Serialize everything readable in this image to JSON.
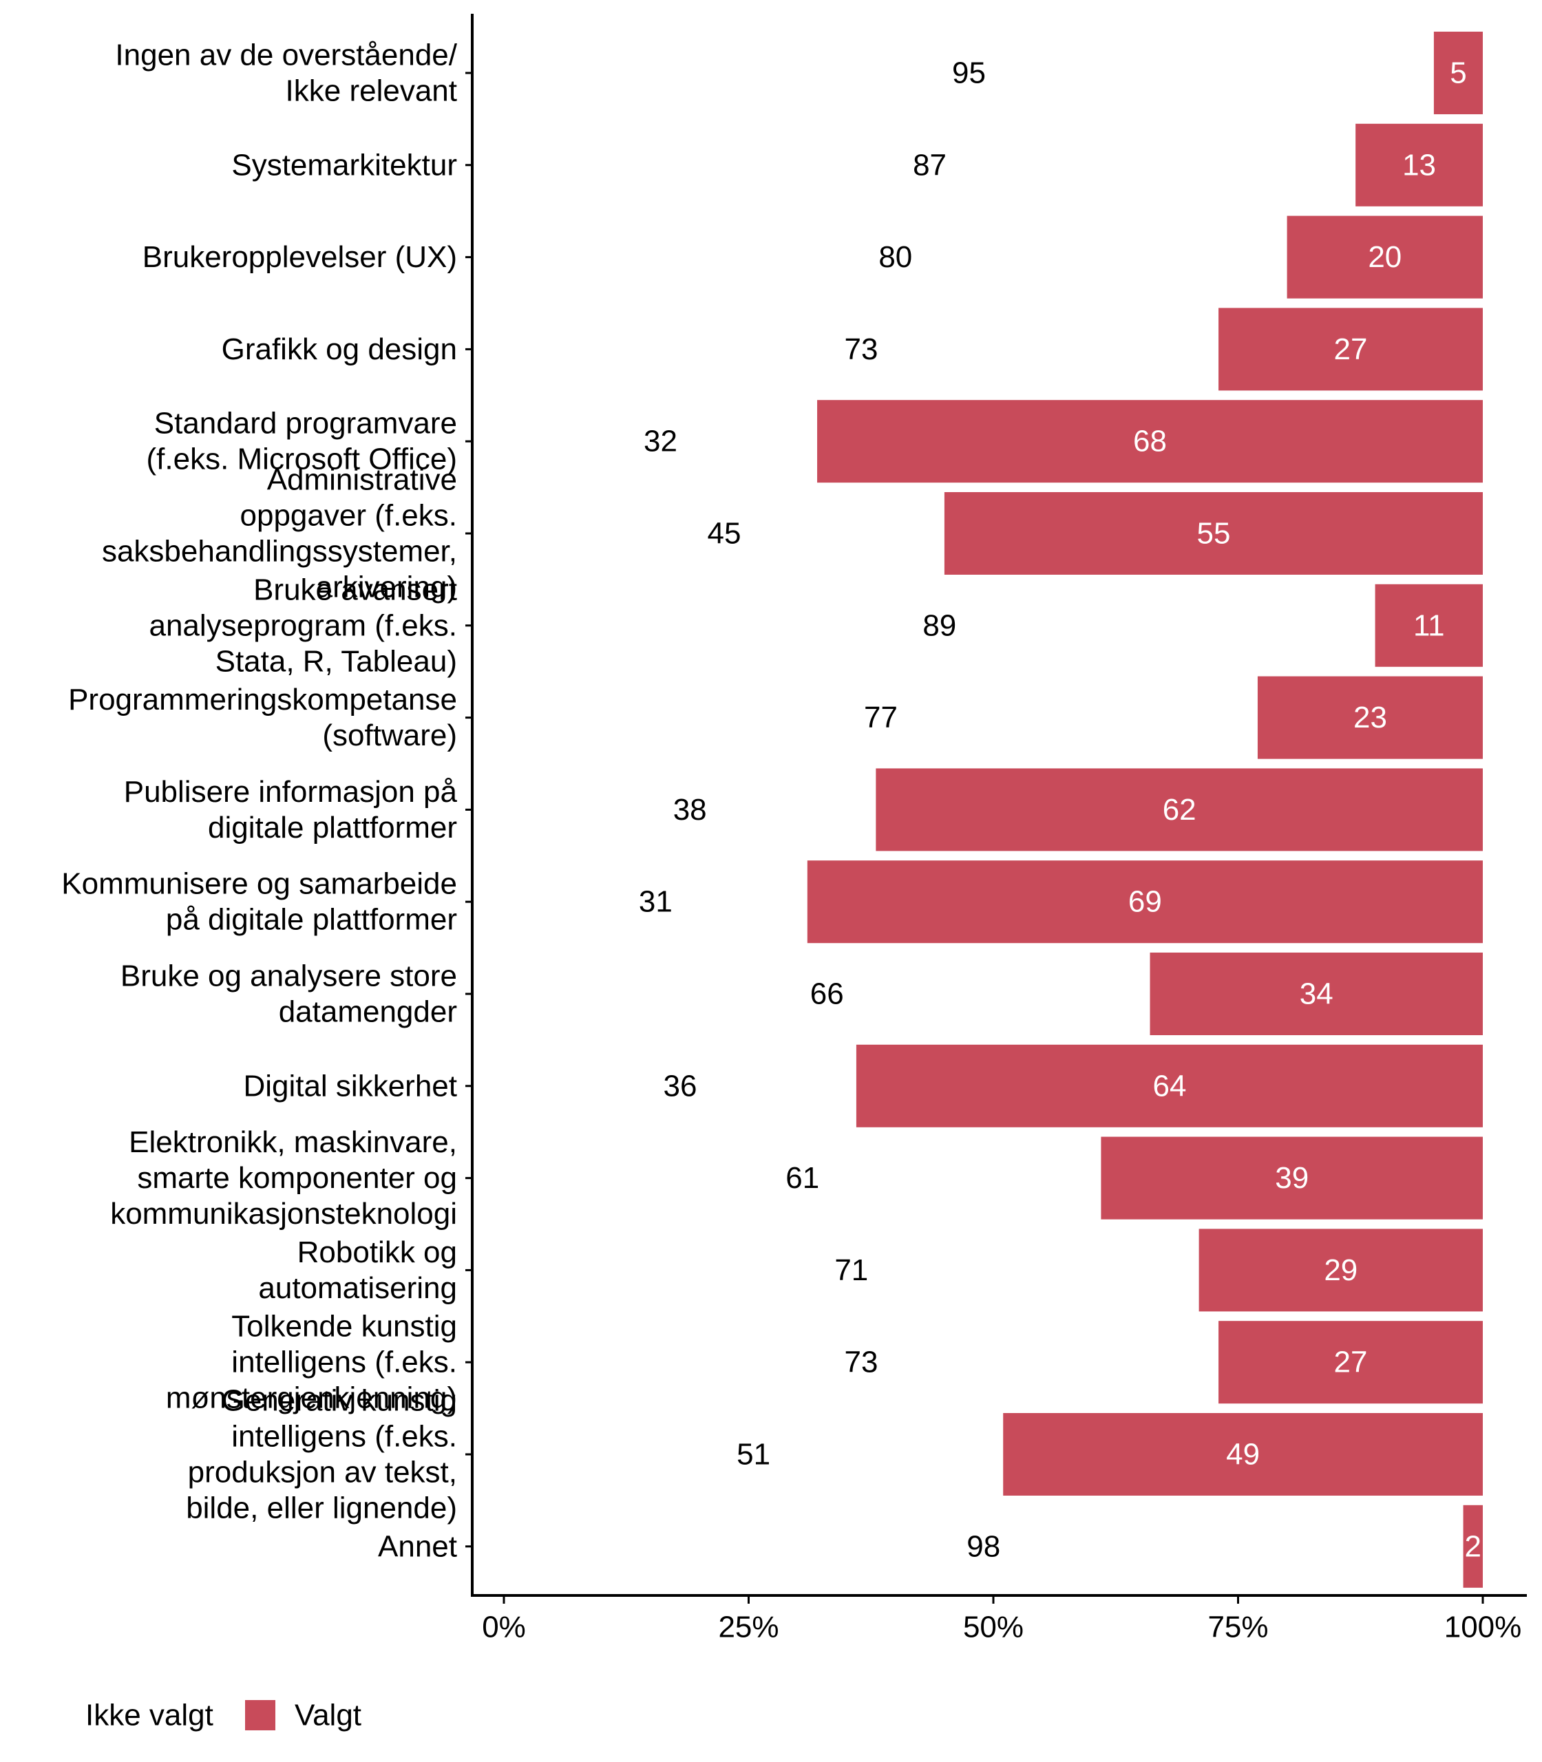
{
  "chart_data": {
    "type": "bar",
    "orientation": "horizontal",
    "stacked": true,
    "categories": [
      "Ingen av de overstående/\nIkke relevant",
      "Systemarkitektur",
      "Brukeropplevelser (UX)",
      "Grafikk og design",
      "Standard programvare\n(f.eks. Microsoft Office)",
      "Administrative\noppgaver (f.eks.\nsaksbehandlingssystemer,\narkivering)",
      "Bruke avansert\nanalyseprogram (f.eks.\nStata, R, Tableau)",
      "Programmeringskompetanse\n(software)",
      "Publisere informasjon på\ndigitale plattformer",
      "Kommunisere og samarbeide\npå digitale plattformer",
      "Bruke og analysere store\ndatamengder",
      "Digital sikkerhet",
      "Elektronikk, maskinvare,\nsmarte komponenter og\nkommunikasjonsteknologi",
      "Robotikk og\nautomatisering",
      "Tolkende kunstig\nintelligens (f.eks.\nmønstergjenkjenning)",
      "Generativ kunstig\nintelligens (f.eks.\nproduksjon av tekst,\nbilde, eller lignende)",
      "Annet"
    ],
    "series": [
      {
        "name": "Ikke valgt",
        "color": "#ffffff",
        "values": [
          95,
          87,
          80,
          73,
          32,
          45,
          89,
          77,
          38,
          31,
          66,
          36,
          61,
          71,
          73,
          51,
          98
        ]
      },
      {
        "name": "Valgt",
        "color": "#c84b5a",
        "values": [
          5,
          13,
          20,
          27,
          68,
          55,
          11,
          23,
          62,
          69,
          34,
          64,
          39,
          29,
          27,
          49,
          2
        ]
      }
    ],
    "xlim": [
      0,
      100
    ],
    "x_ticks": [
      "0%",
      "25%",
      "50%",
      "75%",
      "100%"
    ],
    "xlabel": "",
    "ylabel": "",
    "legend_position": "bottom-left",
    "grid": false
  }
}
